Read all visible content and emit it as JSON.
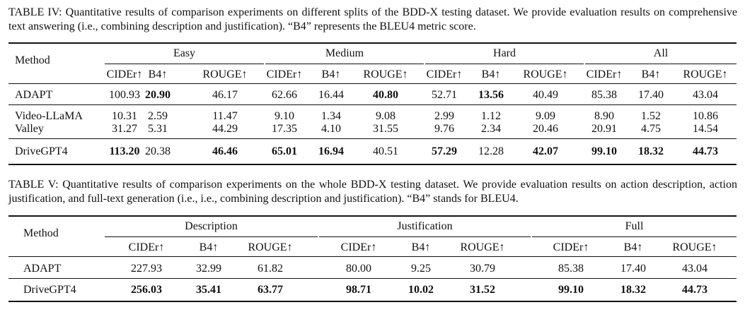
{
  "table4": {
    "caption": "TABLE IV: Quantitative results of comparison experiments on different splits of the BDD-X testing dataset. We provide evaluation results on comprehensive text answering (i.e., combining description and justification). “B4” represents the BLEU4 metric score.",
    "method_header": "Method",
    "groups": [
      "Easy",
      "Medium",
      "Hard",
      "All"
    ],
    "metrics": [
      "CIDEr↑",
      "B4↑",
      "ROUGE↑"
    ],
    "rows": [
      {
        "method": "ADAPT",
        "values": [
          "100.93",
          "20.90",
          "46.17",
          "62.66",
          "16.44",
          "40.80",
          "52.71",
          "13.56",
          "40.49",
          "85.38",
          "17.40",
          "43.04"
        ],
        "bold": [
          1,
          5,
          7
        ]
      },
      {
        "method": "Video-LLaMA",
        "values": [
          "10.31",
          "2.59",
          "11.47",
          "9.10",
          "1.34",
          "9.08",
          "2.99",
          "1.12",
          "9.09",
          "8.90",
          "1.52",
          "10.86"
        ],
        "bold": []
      },
      {
        "method": "Valley",
        "values": [
          "31.27",
          "5.31",
          "44.29",
          "17.35",
          "4.10",
          "31.55",
          "9.76",
          "2.34",
          "20.46",
          "20.91",
          "4.75",
          "14.54"
        ],
        "bold": []
      },
      {
        "method": "DriveGPT4",
        "values": [
          "113.20",
          "20.38",
          "46.46",
          "65.01",
          "16.94",
          "40.51",
          "57.29",
          "12.28",
          "42.07",
          "99.10",
          "18.32",
          "44.73"
        ],
        "bold": [
          0,
          2,
          3,
          4,
          6,
          8,
          9,
          10,
          11
        ]
      }
    ]
  },
  "table5": {
    "caption": "TABLE V: Quantitative results of comparison experiments on the whole BDD-X testing dataset. We provide evaluation results on action description, action justification, and full-text generation (i.e., i.e., combining description and justification). “B4” stands for BLEU4.",
    "method_header": "Method",
    "groups": [
      "Description",
      "Justification",
      "Full"
    ],
    "metrics": [
      "CIDEr↑",
      "B4↑",
      "ROUGE↑"
    ],
    "rows": [
      {
        "method": "ADAPT",
        "values": [
          "227.93",
          "32.99",
          "61.82",
          "80.00",
          "9.25",
          "30.79",
          "85.38",
          "17.40",
          "43.04"
        ],
        "bold": []
      },
      {
        "method": "DriveGPT4",
        "values": [
          "256.03",
          "35.41",
          "63.77",
          "98.71",
          "10.02",
          "31.52",
          "99.10",
          "18.32",
          "44.73"
        ],
        "bold": [
          0,
          1,
          2,
          3,
          4,
          5,
          6,
          7,
          8
        ]
      }
    ]
  }
}
